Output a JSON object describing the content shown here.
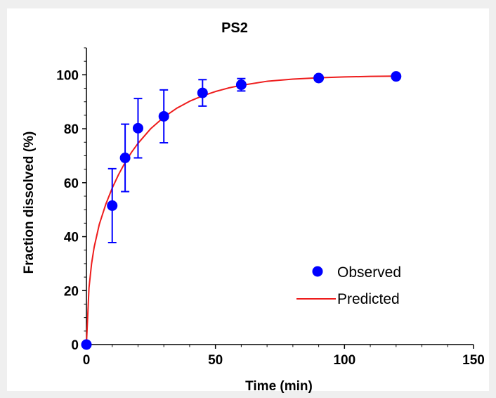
{
  "chart_data": {
    "type": "scatter",
    "title": "PS2",
    "xlabel": "Time (min)",
    "ylabel": "Fraction dissolved (%)",
    "xlim": [
      0,
      150
    ],
    "ylim": [
      0,
      110
    ],
    "xticks": [
      0,
      50,
      100,
      150
    ],
    "yticks": [
      0,
      20,
      40,
      60,
      80,
      100
    ],
    "grid": false,
    "legend_position": "bottom-right",
    "colors": {
      "observed": "#0000ff",
      "predicted": "#ee1c1c",
      "errorbar": "#0000ff"
    },
    "series": [
      {
        "name": "Observed",
        "kind": "scatter",
        "x": [
          0,
          10,
          15,
          20,
          30,
          45,
          60,
          90,
          120
        ],
        "y": [
          0,
          51.5,
          69.2,
          80.2,
          84.6,
          93.3,
          96.3,
          98.8,
          99.4
        ],
        "error": [
          0,
          13.7,
          12.5,
          11.0,
          9.8,
          4.9,
          2.3,
          0,
          0
        ]
      },
      {
        "name": "Predicted",
        "kind": "line",
        "x": [
          0,
          1,
          2,
          3,
          5,
          7.5,
          10,
          12.5,
          15,
          17.5,
          20,
          25,
          30,
          35,
          40,
          45,
          50,
          55,
          60,
          70,
          80,
          90,
          100,
          110,
          120
        ],
        "y": [
          0,
          21,
          30,
          36.1,
          44.6,
          52.0,
          58.0,
          63.1,
          67.5,
          71.3,
          74.6,
          80.1,
          84.3,
          87.6,
          90.2,
          92.2,
          93.8,
          95.1,
          96.1,
          97.6,
          98.4,
          98.9,
          99.2,
          99.4,
          99.5
        ]
      }
    ]
  }
}
